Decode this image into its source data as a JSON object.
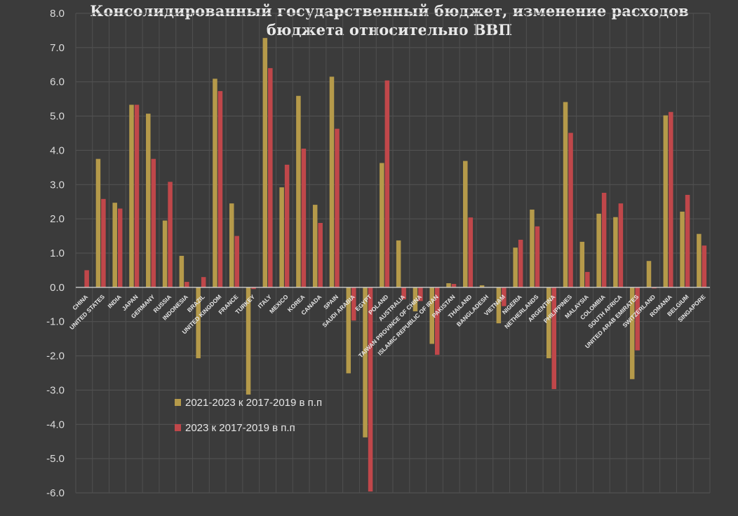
{
  "chart_data": {
    "type": "bar",
    "title_lines": [
      "Консолидированный государственный бюджет, изменение расходов",
      "бюджета относительно ВВП"
    ],
    "categories": [
      "CHINA",
      "UNITED STATES",
      "INDIA",
      "JAPAN",
      "GERMANY",
      "RUSSIA",
      "INDONESIA",
      "BRAZIL",
      "UNITED KINGDOM",
      "FRANCE",
      "TURKEY",
      "ITALY",
      "MEXICO",
      "KOREA",
      "CANADA",
      "SPAIN",
      "SAUDI ARABIA",
      "EGYPT",
      "POLAND",
      "AUSTRALIA",
      "TAIWAN PROVINCE OF CHINA",
      "ISLAMIC REPUBLIC OF IRAN",
      "PAKISTAN",
      "THAILAND",
      "BANGLADESH",
      "VIETNAM",
      "NIGERIA",
      "NETHERLANDS",
      "ARGENTINA",
      "PHILIPPINES",
      "MALAYSIA",
      "COLOMBIA",
      "SOUTH AFRICA",
      "UNITED ARAB EMIRATES",
      "SWITZERLAND",
      "ROMANIA",
      "BELGIUM",
      "SINGAPORE"
    ],
    "series": [
      {
        "name": "2021-2023 к 2017-2019 в п.п",
        "color": "#b59a4a",
        "values": [
          0.0,
          3.75,
          2.47,
          5.33,
          5.07,
          1.95,
          0.92,
          -2.07,
          6.09,
          2.45,
          -3.13,
          7.28,
          2.92,
          5.59,
          2.41,
          6.15,
          -2.51,
          -4.38,
          3.63,
          1.37,
          -0.7,
          -1.65,
          0.12,
          3.69,
          0.06,
          -1.05,
          1.16,
          2.27,
          -2.07,
          5.41,
          1.33,
          2.15,
          2.05,
          -2.68,
          0.77,
          5.02,
          2.21,
          1.56
        ]
      },
      {
        "name": "2023 к 2017-2019 в п.п",
        "color": "#c0474a",
        "values": [
          0.5,
          2.58,
          2.3,
          5.33,
          3.75,
          3.08,
          0.16,
          0.3,
          5.73,
          1.5,
          -0.05,
          6.4,
          3.58,
          4.05,
          1.88,
          4.63,
          -0.97,
          -5.96,
          6.04,
          -0.35,
          -0.4,
          -1.97,
          0.1,
          2.04,
          0.0,
          -0.55,
          1.39,
          1.78,
          -2.97,
          4.51,
          0.45,
          2.76,
          2.45,
          -1.84,
          -0.03,
          5.12,
          2.7,
          1.22
        ]
      }
    ],
    "y_ticks": [
      "8.0",
      "7.0",
      "6.0",
      "5.0",
      "4.0",
      "3.0",
      "2.0",
      "1.0",
      "0.0",
      "-1.0",
      "-2.0",
      "-3.0",
      "-4.0",
      "-5.0",
      "-6.0"
    ],
    "ylim": [
      -6,
      8
    ],
    "grid": true,
    "legend_position": "bottom-left"
  }
}
